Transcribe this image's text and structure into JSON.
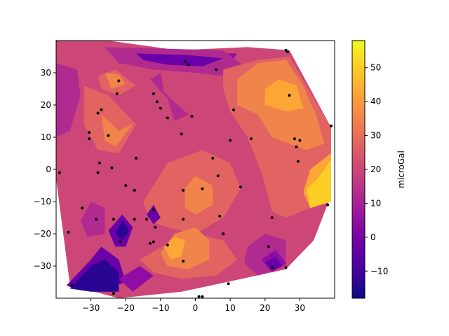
{
  "chart_data": {
    "type": "contour",
    "title": "",
    "xlabel": "",
    "ylabel": "",
    "xlim": [
      -40,
      40
    ],
    "ylim": [
      -40,
      40
    ],
    "x_ticks": [
      -30,
      -20,
      -10,
      0,
      10,
      20,
      30
    ],
    "y_ticks": [
      -30,
      -20,
      -10,
      0,
      10,
      20,
      30
    ],
    "colormap": "plasma",
    "colorbar": {
      "label": "microGal",
      "range": [
        -18,
        58
      ],
      "ticks": [
        -10,
        0,
        10,
        20,
        30,
        40,
        50
      ]
    },
    "level_colors": [
      "#2a0593",
      "#6a00a8",
      "#8f0da4",
      "#b12a90",
      "#cc4778",
      "#e16462",
      "#f1844b",
      "#fca636",
      "#fcce25"
    ],
    "regions": [
      {
        "level": 4,
        "points": [
          [
            -40,
            40
          ],
          [
            -25,
            40
          ],
          [
            -5,
            37
          ],
          [
            15,
            38
          ],
          [
            27,
            37
          ],
          [
            33,
            25
          ],
          [
            39,
            13
          ],
          [
            39,
            -8
          ],
          [
            34,
            -22
          ],
          [
            26,
            -31
          ],
          [
            9,
            -35
          ],
          [
            -4,
            -38
          ],
          [
            -22,
            -40
          ],
          [
            -36,
            -36
          ],
          [
            -40,
            -3
          ]
        ]
      },
      {
        "level": 2,
        "points": [
          [
            -20,
            37
          ],
          [
            -5,
            36
          ],
          [
            12,
            36
          ],
          [
            10,
            33
          ],
          [
            -10,
            34
          ],
          [
            -22,
            35
          ]
        ]
      },
      {
        "level": 3,
        "points": [
          [
            -26,
            38
          ],
          [
            -10,
            37.5
          ],
          [
            8,
            37
          ],
          [
            14,
            32
          ],
          [
            8,
            29
          ],
          [
            0,
            30
          ],
          [
            -12,
            31
          ],
          [
            -22,
            33
          ]
        ]
      },
      {
        "level": 1,
        "points": [
          [
            -17,
            36
          ],
          [
            -2,
            35.5
          ],
          [
            8,
            34.5
          ],
          [
            2,
            32
          ],
          [
            -8,
            32.5
          ],
          [
            -15,
            34
          ]
        ]
      },
      {
        "level": 3,
        "points": [
          [
            -40,
            33
          ],
          [
            -34,
            31
          ],
          [
            -33,
            23
          ],
          [
            -36,
            12
          ],
          [
            -40,
            10
          ]
        ]
      },
      {
        "level": 3,
        "points": [
          [
            -13,
            28
          ],
          [
            -8,
            22
          ],
          [
            -6,
            15
          ],
          [
            -2,
            17
          ],
          [
            -9,
            24
          ],
          [
            -10,
            30
          ]
        ]
      },
      {
        "level": 5,
        "points": [
          [
            -28,
            29
          ],
          [
            -23,
            31
          ],
          [
            -17,
            26
          ],
          [
            -22,
            23
          ],
          [
            -27,
            25
          ]
        ]
      },
      {
        "level": 6,
        "points": [
          [
            -26,
            30
          ],
          [
            -22,
            29.5
          ],
          [
            -20,
            26.5
          ],
          [
            -24,
            25
          ]
        ]
      },
      {
        "level": 5,
        "points": [
          [
            -32,
            26
          ],
          [
            -25,
            23
          ],
          [
            -17,
            14
          ],
          [
            -22,
            5
          ],
          [
            -28,
            6
          ],
          [
            -32,
            14
          ]
        ]
      },
      {
        "level": 6,
        "points": [
          [
            -27,
            17
          ],
          [
            -22,
            12
          ],
          [
            -18,
            14
          ],
          [
            -23,
            7
          ],
          [
            -26,
            9
          ]
        ]
      },
      {
        "level": 5,
        "points": [
          [
            8,
            31
          ],
          [
            18,
            34
          ],
          [
            27,
            35
          ],
          [
            33,
            24
          ],
          [
            39,
            13
          ],
          [
            39,
            -4
          ],
          [
            33,
            -12
          ],
          [
            26,
            -15
          ],
          [
            22,
            -13
          ],
          [
            19,
            -1
          ],
          [
            15,
            10
          ],
          [
            10,
            18
          ],
          [
            8,
            25
          ]
        ]
      },
      {
        "level": 6,
        "points": [
          [
            12,
            28
          ],
          [
            18,
            33
          ],
          [
            26,
            34
          ],
          [
            31,
            26
          ],
          [
            35,
            16
          ],
          [
            37,
            8
          ],
          [
            32,
            6
          ],
          [
            22,
            10
          ],
          [
            18,
            17
          ],
          [
            12,
            20
          ]
        ]
      },
      {
        "level": 7,
        "points": [
          [
            20,
            25
          ],
          [
            24,
            28
          ],
          [
            29,
            26
          ],
          [
            31,
            19
          ],
          [
            26,
            18
          ],
          [
            20,
            20
          ]
        ]
      },
      {
        "level": 7,
        "points": [
          [
            33,
            0
          ],
          [
            39,
            5
          ],
          [
            39,
            -9
          ],
          [
            33,
            -12
          ],
          [
            31,
            -7
          ]
        ]
      },
      {
        "level": 8,
        "points": [
          [
            35,
            -3
          ],
          [
            39,
            3
          ],
          [
            39,
            -10
          ],
          [
            33,
            -12
          ],
          [
            32,
            -6
          ]
        ]
      },
      {
        "level": 5,
        "points": [
          [
            -15,
            -10
          ],
          [
            -8,
            2
          ],
          [
            2,
            6
          ],
          [
            10,
            2
          ],
          [
            13,
            -6
          ],
          [
            8,
            -15
          ],
          [
            0,
            -20
          ],
          [
            -8,
            -18
          ],
          [
            -13,
            -16
          ]
        ]
      },
      {
        "level": 6,
        "points": [
          [
            -3,
            -6
          ],
          [
            0,
            -2
          ],
          [
            5,
            -5
          ],
          [
            5,
            -11
          ],
          [
            0,
            -14
          ],
          [
            -3,
            -12
          ]
        ]
      },
      {
        "level": 5,
        "points": [
          [
            -16,
            -28
          ],
          [
            -8,
            -23
          ],
          [
            0,
            -20
          ],
          [
            8,
            -22
          ],
          [
            12,
            -28
          ],
          [
            6,
            -33
          ],
          [
            -4,
            -34
          ],
          [
            -12,
            -32
          ]
        ]
      },
      {
        "level": 6,
        "points": [
          [
            -10,
            -26
          ],
          [
            -6,
            -20
          ],
          [
            0,
            -18
          ],
          [
            4,
            -22
          ],
          [
            4,
            -28
          ],
          [
            -2,
            -31
          ],
          [
            -8,
            -30
          ]
        ]
      },
      {
        "level": 7,
        "points": [
          [
            -9,
            -24
          ],
          [
            -6,
            -21
          ],
          [
            -3,
            -22
          ],
          [
            -4,
            -27
          ],
          [
            -7,
            -28
          ]
        ]
      },
      {
        "level": 1,
        "points": [
          [
            -37,
            -36
          ],
          [
            -30,
            -28
          ],
          [
            -27,
            -24
          ],
          [
            -22,
            -28
          ],
          [
            -20,
            -35
          ],
          [
            -28,
            -38
          ],
          [
            -35,
            -37
          ]
        ]
      },
      {
        "level": 0,
        "points": [
          [
            -36,
            -37
          ],
          [
            -30,
            -30
          ],
          [
            -26,
            -28
          ],
          [
            -22,
            -32
          ],
          [
            -22,
            -38
          ],
          [
            -30,
            -38
          ]
        ]
      },
      {
        "level": 2,
        "points": [
          [
            -22,
            -34
          ],
          [
            -16,
            -30
          ],
          [
            -12,
            -33
          ],
          [
            -18,
            -38
          ]
        ]
      },
      {
        "level": 1,
        "points": [
          [
            -25,
            -19
          ],
          [
            -21,
            -14
          ],
          [
            -18,
            -18
          ],
          [
            -20,
            -24
          ],
          [
            -23,
            -24
          ]
        ]
      },
      {
        "level": 0,
        "points": [
          [
            -23,
            -20
          ],
          [
            -21,
            -16
          ],
          [
            -19,
            -19
          ],
          [
            -21,
            -22
          ]
        ]
      },
      {
        "level": 1,
        "points": [
          [
            -14,
            -14
          ],
          [
            -12,
            -11
          ],
          [
            -10,
            -15
          ],
          [
            -12,
            -17
          ]
        ]
      },
      {
        "level": 3,
        "points": [
          [
            -33,
            -16
          ],
          [
            -30,
            -10
          ],
          [
            -26,
            -12
          ],
          [
            -26,
            -20
          ],
          [
            -31,
            -21
          ]
        ]
      },
      {
        "level": 3,
        "points": [
          [
            15,
            -24
          ],
          [
            20,
            -20
          ],
          [
            26,
            -22
          ],
          [
            26,
            -30
          ],
          [
            18,
            -33
          ],
          [
            14,
            -29
          ]
        ]
      },
      {
        "level": 2,
        "points": [
          [
            19,
            -28
          ],
          [
            23,
            -25
          ],
          [
            26,
            -29
          ],
          [
            22,
            -32
          ]
        ]
      },
      {
        "level": 1,
        "points": [
          [
            20,
            -29
          ],
          [
            23,
            -27
          ],
          [
            25,
            -30
          ],
          [
            22,
            -31.5
          ]
        ]
      }
    ],
    "sample_points": [
      [
        -40,
        40
      ],
      [
        -28,
        -1
      ],
      [
        -39,
        -1
      ],
      [
        -28,
        17.5
      ],
      [
        -27,
        18.5
      ],
      [
        -30.5,
        11.5
      ],
      [
        -30.5,
        9.5
      ],
      [
        -25,
        10.5
      ],
      [
        -22.5,
        23.5
      ],
      [
        -22,
        27.5
      ],
      [
        -27.5,
        2
      ],
      [
        -24,
        0.5
      ],
      [
        -17,
        3.5
      ],
      [
        -12,
        23.5
      ],
      [
        -11,
        21
      ],
      [
        -10,
        19
      ],
      [
        -8,
        16
      ],
      [
        -4,
        11
      ],
      [
        -1,
        16.5
      ],
      [
        -2,
        32.5
      ],
      [
        -3,
        33.5
      ],
      [
        6,
        31
      ],
      [
        11,
        18.5
      ],
      [
        10,
        9
      ],
      [
        16,
        9.5
      ],
      [
        5,
        3.5
      ],
      [
        6.5,
        -2
      ],
      [
        13,
        -5.5
      ],
      [
        26,
        37
      ],
      [
        26.5,
        36.5
      ],
      [
        27,
        23
      ],
      [
        28.5,
        9.5
      ],
      [
        30,
        9
      ],
      [
        29,
        7
      ],
      [
        29.5,
        2.5
      ],
      [
        39,
        13.5
      ],
      [
        38,
        -11
      ],
      [
        22,
        -15
      ],
      [
        26,
        -30.5
      ],
      [
        22,
        -30.5
      ],
      [
        21,
        -24
      ],
      [
        7,
        -14.5
      ],
      [
        8,
        -20
      ],
      [
        9.5,
        -35.5
      ],
      [
        2,
        -39.5
      ],
      [
        -3.5,
        -15.5
      ],
      [
        -3.5,
        -6.5
      ],
      [
        2,
        -6
      ],
      [
        -3.5,
        -28.5
      ],
      [
        -8,
        -23.5
      ],
      [
        -12,
        -22.5
      ],
      [
        -13,
        -23
      ],
      [
        -11.5,
        -18
      ],
      [
        -12,
        -12.5
      ],
      [
        -14,
        -15.5
      ],
      [
        -17.5,
        -15.5
      ],
      [
        -17.5,
        -6.5
      ],
      [
        -20,
        -5
      ],
      [
        -21.5,
        -22.5
      ],
      [
        -23.5,
        -15.5
      ],
      [
        -28.5,
        -15.5
      ],
      [
        -32.5,
        -12
      ],
      [
        -36.5,
        -19.5
      ],
      [
        -35.5,
        -36
      ],
      [
        -23.5,
        -38.5
      ],
      [
        1,
        -39.5
      ]
    ]
  }
}
